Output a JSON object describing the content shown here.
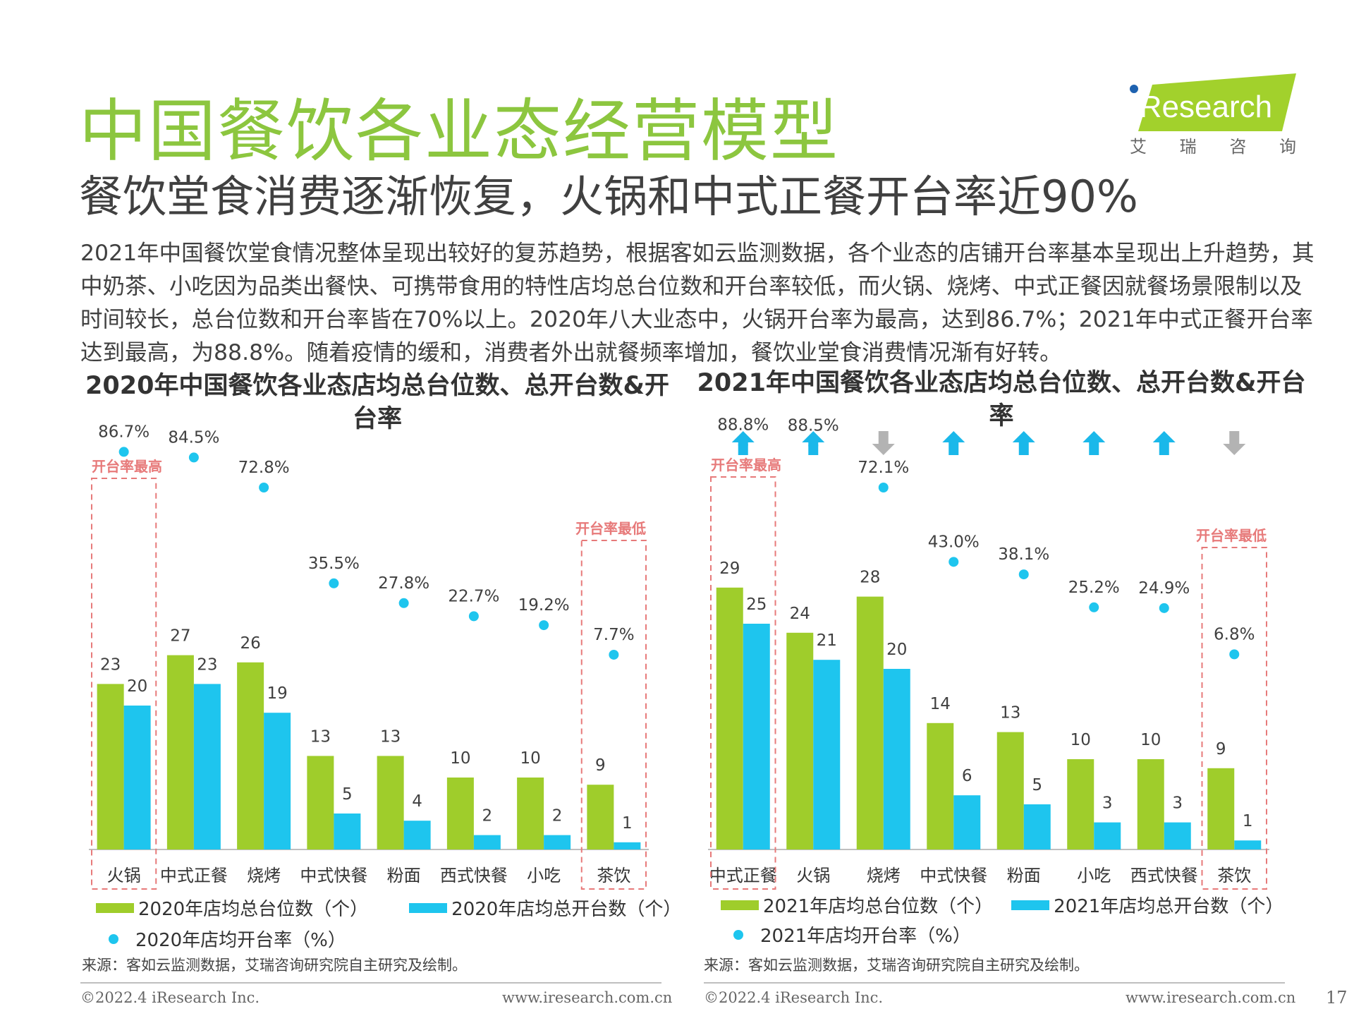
{
  "title": "中国餐饮各业态经营模型",
  "subtitle": "餐饮堂食消费逐渐恢复，火锅和中式正餐开台率近90%",
  "body": "2021年中国餐饮堂食情况整体呈现出较好的复苏趋势，根据客如云监测数据，各个业态的店铺开台率基本呈现出上升趋势，其中奶茶、小吃因为品类出餐快、可携带食用的特性店均总台位数和开台率较低，而火锅、烧烤、中式正餐因就餐场景限制以及时间较长，总台位数和开台率皆在70%以上。2020年八大业态中，火锅开台率为最高，达到86.7%；2021年中式正餐开台率达到最高，为88.8%。随着疫情的缓和，消费者外出就餐频率增加，餐饮业堂食消费情况渐有好转。",
  "logo": {
    "text": "iResearch",
    "cn_chars": [
      "艾",
      "瑞",
      "咨",
      "询"
    ]
  },
  "colors": {
    "green": "#9fcd2b",
    "blue": "#1ec5ee",
    "red": "#e77a7a",
    "up": "#1ab8ea",
    "down": "#b3b3b3",
    "title_green": "#8cc63f"
  },
  "chart_data": [
    {
      "type": "bar",
      "title": "2020年中国餐饮各业态店均总台位数、总开台数&开台率",
      "categories": [
        "火锅",
        "中式正餐",
        "烧烤",
        "中式快餐",
        "粉面",
        "西式快餐",
        "小吃",
        "茶饮"
      ],
      "series": [
        {
          "name": "2020年店均总台位数（个）",
          "values": [
            23,
            27,
            26,
            13,
            13,
            10,
            10,
            9
          ],
          "labels": [
            "23",
            "27",
            "26",
            "13",
            "13",
            "10",
            "10",
            "9"
          ]
        },
        {
          "name": "2020年店均总开台数（个）",
          "values": [
            20,
            23,
            19,
            5,
            4,
            2,
            2,
            1
          ],
          "labels": [
            "20",
            "23",
            "19",
            "5",
            "4",
            "2",
            "2",
            "1"
          ]
        },
        {
          "name": "2020年店均开台率（%）",
          "type": "scatter",
          "values": [
            86.7,
            84.5,
            72.8,
            35.5,
            27.8,
            22.7,
            19.2,
            7.7
          ],
          "labels": [
            "86.7%",
            "84.5%",
            "72.8%",
            "35.5%",
            "27.8%",
            "22.7%",
            "19.2%",
            "7.7%"
          ]
        }
      ],
      "highlights": [
        {
          "category": "火锅",
          "label": "开台率最高"
        },
        {
          "category": "茶饮",
          "label": "开台率最低"
        }
      ],
      "source": "来源：客如云监测数据，艾瑞咨询研究院自主研究及绘制。"
    },
    {
      "type": "bar",
      "title": "2021年中国餐饮各业态店均总台位数、总开台数&开台率",
      "categories": [
        "中式正餐",
        "火锅",
        "烧烤",
        "中式快餐",
        "粉面",
        "小吃",
        "西式快餐",
        "茶饮"
      ],
      "series": [
        {
          "name": "2021年店均总台位数（个）",
          "values": [
            29,
            24,
            28,
            14,
            13,
            10,
            10,
            9
          ],
          "labels": [
            "29",
            "24",
            "28",
            "14",
            "13",
            "10",
            "10",
            "9"
          ]
        },
        {
          "name": "2021年店均总开台数（个）",
          "values": [
            25,
            21,
            20,
            6,
            5,
            3,
            3,
            1
          ],
          "labels": [
            "25",
            "21",
            "20",
            "6",
            "5",
            "3",
            "3",
            "1"
          ]
        },
        {
          "name": "2021年店均开台率（%）",
          "type": "scatter",
          "values": [
            88.8,
            88.5,
            72.1,
            43.0,
            38.1,
            25.2,
            24.9,
            6.8
          ],
          "labels": [
            "88.8%",
            "88.5%",
            "72.1%",
            "43.0%",
            "38.1%",
            "25.2%",
            "24.9%",
            "6.8%"
          ]
        }
      ],
      "trend_vs_2020": [
        "up",
        "up",
        "down",
        "up",
        "up",
        "up",
        "up",
        "down"
      ],
      "highlights": [
        {
          "category": "中式正餐",
          "label": "开台率最高"
        },
        {
          "category": "茶饮",
          "label": "开台率最低"
        }
      ],
      "source": "来源：客如云监测数据，艾瑞咨询研究院自主研究及绘制。"
    }
  ],
  "footer": {
    "copyright": "©2022.4 iResearch Inc.",
    "url": "www.iresearch.com.cn",
    "page": "17"
  }
}
